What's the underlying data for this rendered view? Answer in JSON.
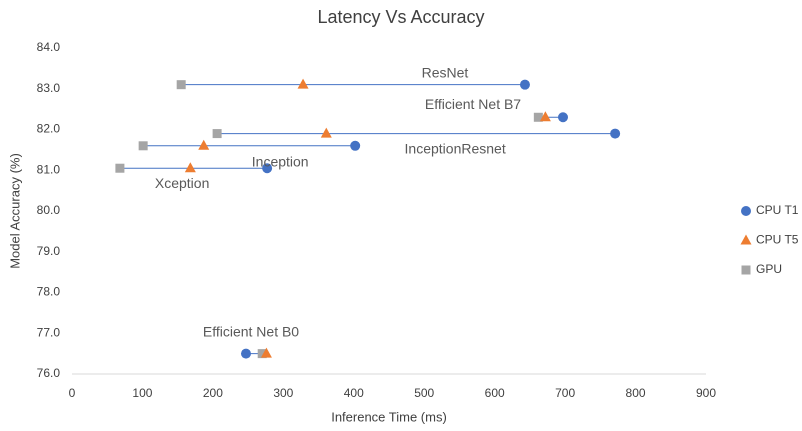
{
  "chart_data": {
    "type": "scatter",
    "title": "Latency Vs Accuracy",
    "x_label": "Inference Time (ms)",
    "y_label": "Model Accuracy (%)",
    "labels": [
      "ResNet",
      "Efficient Net B7",
      "InceptionResnet",
      "Inception",
      "Xception",
      "Efficient Net B0"
    ],
    "series": [
      {
        "name": "CPU T1",
        "color": "#4472c4",
        "marker": "circle",
        "x": [
          643,
          697,
          771,
          402,
          277,
          247
        ],
        "values": [
          83.1,
          82.3,
          81.9,
          81.6,
          81.05,
          76.5
        ]
      },
      {
        "name": "CPU T5",
        "color": "#ed7d31",
        "marker": "triangle",
        "x": [
          328,
          672,
          361,
          187,
          168,
          276
        ],
        "values": [
          83.1,
          82.3,
          81.9,
          81.6,
          81.05,
          76.5
        ]
      },
      {
        "name": "GPU",
        "color": "#a5a5a5",
        "marker": "square",
        "x": [
          155,
          662,
          206,
          101,
          68,
          270
        ],
        "values": [
          83.1,
          82.3,
          81.9,
          81.6,
          81.05,
          76.5
        ]
      }
    ],
    "xlim": [
      0,
      900
    ],
    "xticks": [
      0,
      100,
      200,
      300,
      400,
      500,
      600,
      700,
      800,
      900
    ],
    "ylim": [
      76,
      84
    ],
    "yticks": [
      {
        "value": 76,
        "label": "76.0"
      },
      {
        "value": 77,
        "label": "77.0"
      },
      {
        "value": 78,
        "label": "78.0"
      },
      {
        "value": 79,
        "label": "79.0"
      },
      {
        "value": 80,
        "label": "80.0"
      },
      {
        "value": 81,
        "label": "81.0"
      },
      {
        "value": 82,
        "label": "82.0"
      },
      {
        "value": 83,
        "label": "83.0"
      },
      {
        "value": 84,
        "label": "84.0"
      }
    ],
    "grid": false,
    "legend": "right"
  }
}
